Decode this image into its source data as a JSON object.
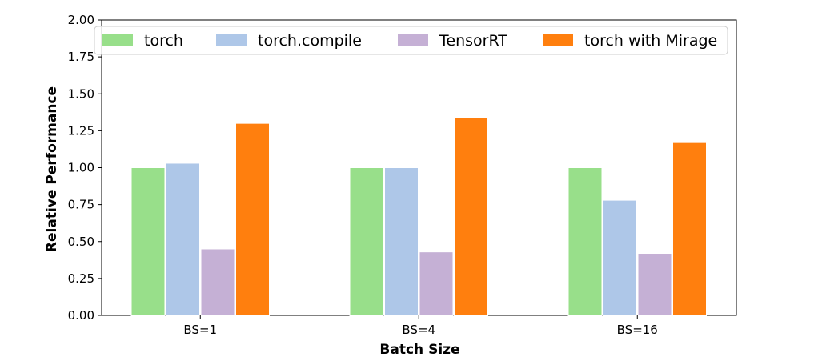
{
  "chart_data": {
    "type": "bar",
    "title": "",
    "xlabel": "Batch Size",
    "ylabel": "Relative Performance",
    "ylim": [
      0,
      2.0
    ],
    "yticks": [
      "0.00",
      "0.25",
      "0.50",
      "0.75",
      "1.00",
      "1.25",
      "1.50",
      "1.75",
      "2.00"
    ],
    "categories": [
      "BS=1",
      "BS=4",
      "BS=16"
    ],
    "series": [
      {
        "name": "torch",
        "values": [
          1.0,
          1.0,
          1.0
        ],
        "color": "#98df8a"
      },
      {
        "name": "torch.compile",
        "values": [
          1.03,
          1.0,
          0.78
        ],
        "color": "#aec7e8"
      },
      {
        "name": "TensorRT",
        "values": [
          0.45,
          0.43,
          0.42
        ],
        "color": "#c5b0d5"
      },
      {
        "name": "torch with Mirage",
        "values": [
          1.3,
          1.34,
          1.17
        ],
        "color": "#ff7f0e"
      }
    ],
    "legend": {
      "position": "top",
      "columns": 4
    },
    "grid": false
  }
}
